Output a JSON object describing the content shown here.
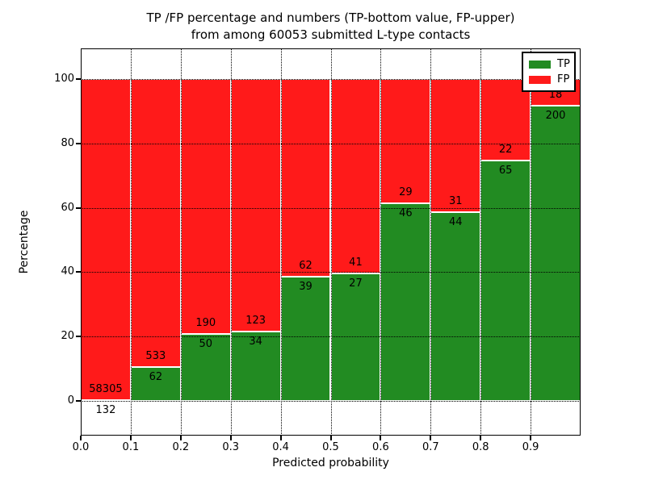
{
  "chart_data": {
    "type": "bar",
    "variant": "stacked-percentage",
    "title": "TP /FP percentage and numbers (TP-bottom value, FP-upper) from among 60053 submitted L-type contacts",
    "title_lines": [
      "TP /FP percentage and numbers (TP-bottom value, FP-upper)",
      "from among 60053 submitted L-type contacts"
    ],
    "total_submitted": 60053,
    "xlabel": "Predicted probability",
    "ylabel": "Percentage",
    "xlim": [
      0.0,
      1.0
    ],
    "ylim": [
      -10.8,
      109.7
    ],
    "stack_to": 100,
    "grid": "dotted",
    "legend_position": "upper right",
    "x_ticks": [
      {
        "value": 0.0,
        "label": "0.0"
      },
      {
        "value": 0.1,
        "label": "0.1"
      },
      {
        "value": 0.2,
        "label": "0.2"
      },
      {
        "value": 0.3,
        "label": "0.3"
      },
      {
        "value": 0.4,
        "label": "0.4"
      },
      {
        "value": 0.5,
        "label": "0.5"
      },
      {
        "value": 0.6,
        "label": "0.6"
      },
      {
        "value": 0.7,
        "label": "0.7"
      },
      {
        "value": 0.8,
        "label": "0.8"
      },
      {
        "value": 0.9,
        "label": "0.9"
      }
    ],
    "y_ticks": [
      {
        "value": 0,
        "label": "0"
      },
      {
        "value": 20,
        "label": "20"
      },
      {
        "value": 40,
        "label": "40"
      },
      {
        "value": 60,
        "label": "60"
      },
      {
        "value": 80,
        "label": "80"
      },
      {
        "value": 100,
        "label": "100"
      }
    ],
    "legend": [
      {
        "label": "TP",
        "color": "#228b22"
      },
      {
        "label": "FP",
        "color": "#ff1a1a"
      }
    ],
    "bins": [
      {
        "x0": 0.0,
        "x1": 0.1,
        "tp": 132,
        "fp": 58305,
        "tp_pct": 0.23
      },
      {
        "x0": 0.1,
        "x1": 0.2,
        "tp": 62,
        "fp": 533,
        "tp_pct": 10.42
      },
      {
        "x0": 0.2,
        "x1": 0.3,
        "tp": 50,
        "fp": 190,
        "tp_pct": 20.83
      },
      {
        "x0": 0.3,
        "x1": 0.4,
        "tp": 34,
        "fp": 123,
        "tp_pct": 21.66
      },
      {
        "x0": 0.4,
        "x1": 0.5,
        "tp": 39,
        "fp": 62,
        "tp_pct": 38.61
      },
      {
        "x0": 0.5,
        "x1": 0.6,
        "tp": 27,
        "fp": 41,
        "tp_pct": 39.71
      },
      {
        "x0": 0.6,
        "x1": 0.7,
        "tp": 46,
        "fp": 29,
        "tp_pct": 61.33
      },
      {
        "x0": 0.7,
        "x1": 0.8,
        "tp": 44,
        "fp": 31,
        "tp_pct": 58.67
      },
      {
        "x0": 0.8,
        "x1": 0.9,
        "tp": 65,
        "fp": 22,
        "tp_pct": 74.71
      },
      {
        "x0": 0.9,
        "x1": 1.0,
        "tp": 200,
        "fp": 18,
        "tp_pct": 91.74
      }
    ]
  }
}
